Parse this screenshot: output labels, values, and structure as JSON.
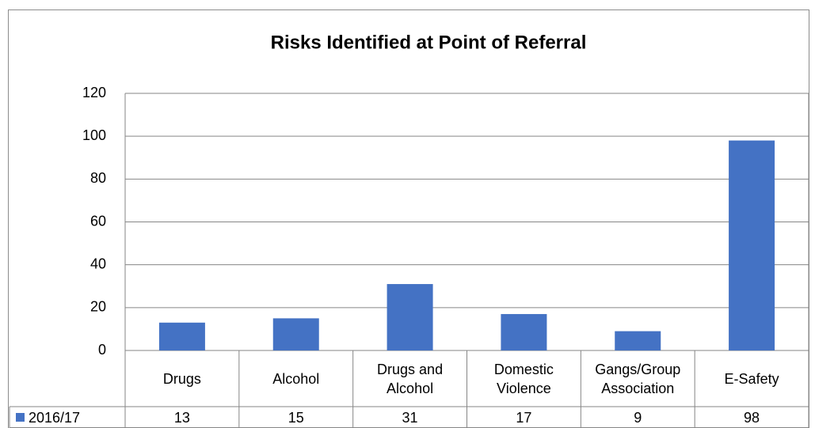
{
  "chart_data": {
    "type": "bar",
    "title": "Risks Identified at Point of Referral",
    "categories": [
      "Drugs",
      "Alcohol",
      "Drugs and Alcohol",
      "Domestic Violence",
      "Gangs/Group Association",
      "E-Safety"
    ],
    "series": [
      {
        "name": "2016/17",
        "color": "#4472c4",
        "values": [
          13,
          15,
          31,
          17,
          9,
          98
        ]
      }
    ],
    "ylim": [
      0,
      120
    ],
    "yticks": [
      0,
      20,
      40,
      60,
      80,
      100,
      120
    ],
    "grid": true,
    "data_table": true
  }
}
